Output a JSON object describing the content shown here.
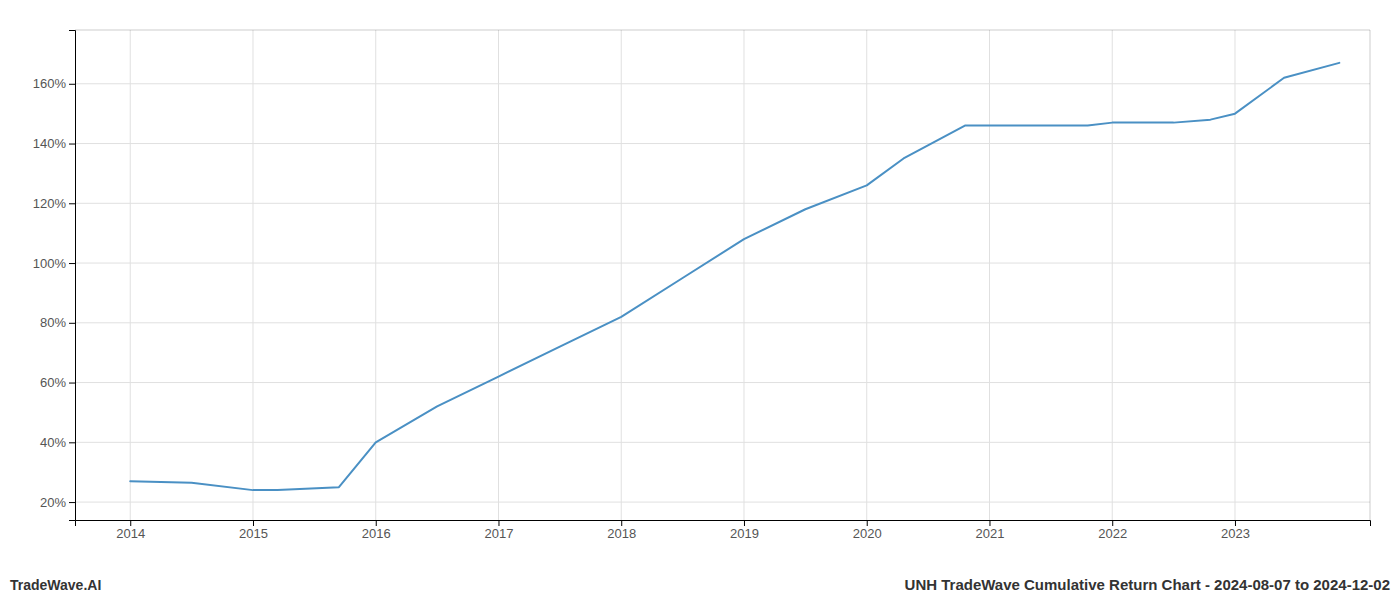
{
  "chart_data": {
    "type": "line",
    "title": "UNH TradeWave Cumulative Return Chart - 2024-08-07 to 2024-12-02",
    "annotations": [
      "TradeWave.AI"
    ],
    "x": [
      2014.0,
      2014.5,
      2015.0,
      2015.2,
      2015.7,
      2016.0,
      2016.5,
      2017.0,
      2017.5,
      2018.0,
      2018.5,
      2019.0,
      2019.5,
      2020.0,
      2020.3,
      2020.8,
      2021.0,
      2021.3,
      2021.8,
      2022.0,
      2022.5,
      2022.8,
      2023.0,
      2023.4,
      2023.85
    ],
    "values": [
      27,
      26.5,
      24,
      24,
      25,
      40,
      52,
      62,
      72,
      82,
      95,
      108,
      118,
      126,
      135,
      146,
      146,
      146,
      146,
      147,
      147,
      148,
      150,
      162,
      167
    ],
    "color": "#4a90c4",
    "xlim": [
      2013.55,
      2024.1
    ],
    "xticks": [
      2014,
      2015,
      2016,
      2017,
      2018,
      2019,
      2020,
      2021,
      2022,
      2023
    ],
    "ylim": [
      14,
      178
    ],
    "yticks": [
      {
        "value": 20,
        "label": "20%"
      },
      {
        "value": 40,
        "label": "40%"
      },
      {
        "value": 60,
        "label": "60%"
      },
      {
        "value": 80,
        "label": "80%"
      },
      {
        "value": 100,
        "label": "100%"
      },
      {
        "value": 120,
        "label": "120%"
      },
      {
        "value": 140,
        "label": "140%"
      },
      {
        "value": 160,
        "label": "160%"
      }
    ],
    "grid": true
  }
}
